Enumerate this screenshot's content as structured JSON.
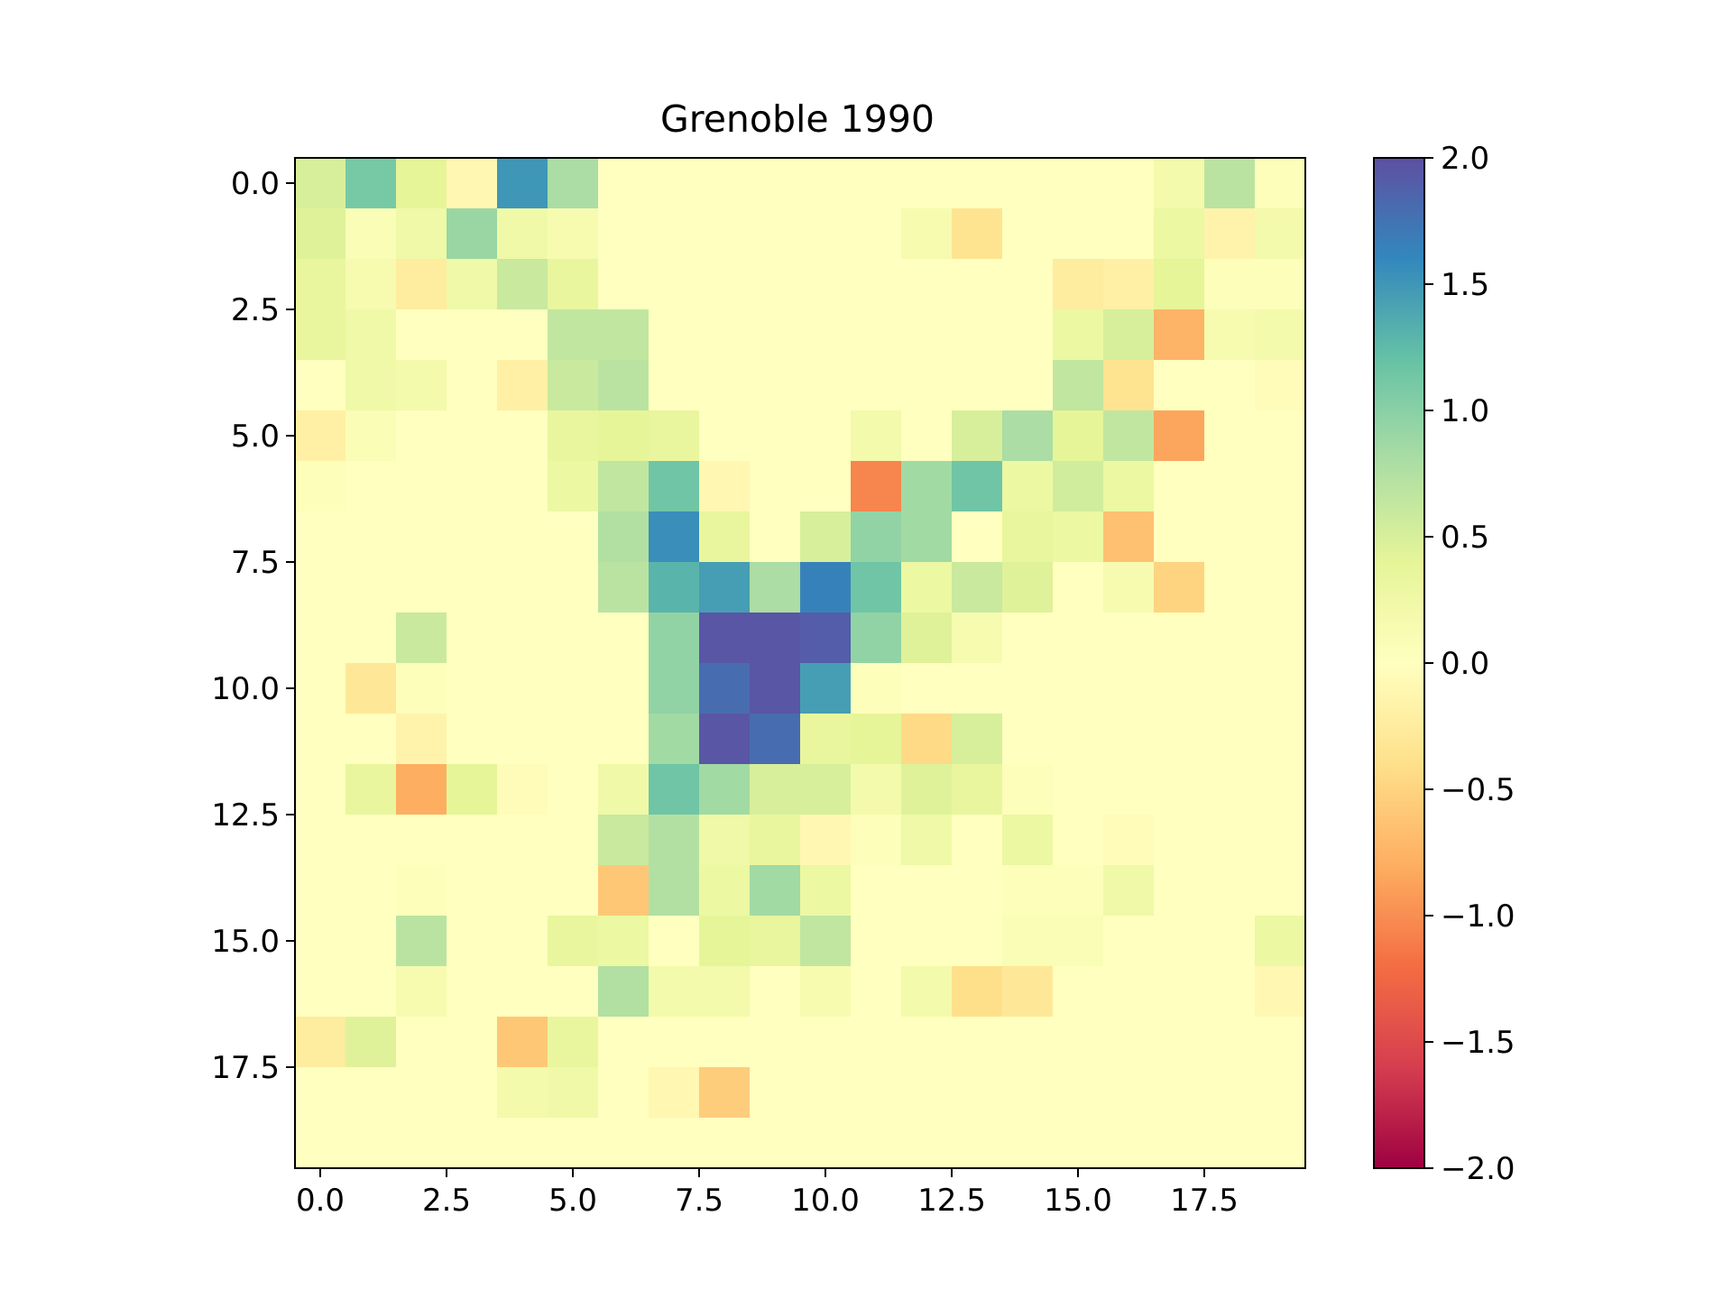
{
  "chart_data": {
    "type": "heatmap",
    "title": "Grenoble 1990",
    "xlabel": "",
    "ylabel": "",
    "colormap": "Spectral",
    "vmin": -2.0,
    "vmax": 2.0,
    "xlim": [
      -0.5,
      19.5
    ],
    "ylim": [
      19.5,
      -0.5
    ],
    "x_ticks": [
      "0.0",
      "2.5",
      "5.0",
      "7.5",
      "10.0",
      "12.5",
      "15.0",
      "17.5"
    ],
    "y_ticks": [
      "0.0",
      "2.5",
      "5.0",
      "7.5",
      "10.0",
      "12.5",
      "15.0",
      "17.5"
    ],
    "colorbar_ticks": [
      "−2.0",
      "−1.5",
      "−1.0",
      "−0.5",
      "0.0",
      "0.5",
      "1.0",
      "1.5",
      "2.0"
    ],
    "grid": false,
    "values": [
      [
        0.5,
        1.1,
        0.4,
        -0.1,
        1.5,
        0.8,
        0,
        0,
        0,
        0,
        0,
        0,
        0,
        0,
        0,
        0,
        0,
        0.2,
        0.7,
        0.05
      ],
      [
        0.45,
        0.1,
        0.25,
        0.9,
        0.25,
        0.15,
        0,
        0,
        0,
        0,
        0,
        0,
        0.15,
        -0.35,
        0,
        0,
        0,
        0.3,
        -0.15,
        0.2
      ],
      [
        0.35,
        0.15,
        -0.25,
        0.25,
        0.6,
        0.35,
        0,
        0,
        0,
        0,
        0,
        0,
        0,
        0,
        0,
        -0.25,
        -0.2,
        0.4,
        0.05,
        0.05
      ],
      [
        0.35,
        0.25,
        0,
        0,
        0,
        0.65,
        0.65,
        0,
        0,
        0,
        0,
        0,
        0,
        0,
        0,
        0.3,
        0.5,
        -0.75,
        0.15,
        0.2
      ],
      [
        0,
        0.25,
        0.2,
        0,
        -0.2,
        0.6,
        0.7,
        0,
        0,
        0,
        0,
        0,
        0,
        0,
        0,
        0.65,
        -0.35,
        0,
        0,
        -0.05
      ],
      [
        -0.2,
        0.1,
        0,
        0,
        0,
        0.35,
        0.4,
        0.35,
        0,
        0,
        0,
        0.2,
        0,
        0.5,
        0.8,
        0.4,
        0.65,
        -0.85,
        0,
        0
      ],
      [
        0.05,
        0,
        0,
        0,
        0,
        0.3,
        0.65,
        1.15,
        -0.1,
        0,
        0,
        -1.05,
        0.85,
        1.15,
        0.3,
        0.55,
        0.3,
        0,
        0,
        0
      ],
      [
        0,
        0,
        0,
        0,
        0,
        0,
        0.75,
        1.55,
        0.35,
        0,
        0.5,
        0.95,
        0.85,
        0,
        0.35,
        0.3,
        -0.65,
        0,
        0,
        0
      ],
      [
        0,
        0,
        0,
        0,
        0,
        0,
        0.7,
        1.3,
        1.45,
        0.8,
        1.65,
        1.15,
        0.3,
        0.6,
        0.45,
        0,
        0.15,
        -0.5,
        0,
        0
      ],
      [
        0,
        0,
        0.6,
        0,
        0,
        0,
        0,
        0.95,
        1.95,
        1.95,
        1.9,
        0.95,
        0.45,
        0.15,
        0,
        0,
        0,
        0,
        0,
        0
      ],
      [
        0,
        -0.3,
        0.05,
        0,
        0,
        0,
        0,
        0.95,
        1.8,
        1.95,
        1.45,
        0.05,
        0,
        0,
        0,
        0,
        0,
        0,
        0,
        0
      ],
      [
        0,
        0,
        -0.15,
        0,
        0,
        0,
        0,
        0.85,
        1.95,
        1.8,
        0.35,
        0.4,
        -0.45,
        0.5,
        0,
        0,
        0,
        0,
        0,
        0
      ],
      [
        0,
        0.35,
        -0.8,
        0.4,
        -0.05,
        0,
        0.25,
        1.15,
        0.85,
        0.5,
        0.5,
        0.2,
        0.45,
        0.35,
        0.05,
        0,
        0,
        0,
        0,
        0
      ],
      [
        0,
        0,
        0,
        0,
        0,
        0,
        0.6,
        0.75,
        0.25,
        0.35,
        -0.1,
        0.05,
        0.25,
        0,
        0.3,
        0,
        -0.05,
        0,
        0,
        0
      ],
      [
        0,
        0,
        0.05,
        0,
        0,
        0,
        -0.6,
        0.75,
        0.3,
        0.85,
        0.3,
        0,
        0,
        0,
        0.05,
        0.05,
        0.25,
        0,
        0,
        0
      ],
      [
        0,
        0,
        0.7,
        0,
        0,
        0.35,
        0.3,
        0,
        0.4,
        0.35,
        0.65,
        0,
        0,
        0,
        0.1,
        0.1,
        0,
        0,
        0,
        0.3
      ],
      [
        0,
        0,
        0.15,
        0,
        0,
        0,
        0.75,
        0.2,
        0.2,
        0,
        0.15,
        0,
        0.2,
        -0.4,
        -0.3,
        0,
        0,
        0,
        0,
        -0.1
      ],
      [
        -0.25,
        0.45,
        0,
        0,
        -0.6,
        0.35,
        0,
        0,
        0,
        0,
        0,
        0,
        0,
        0,
        0,
        0,
        0,
        0,
        0,
        0
      ],
      [
        0,
        0,
        0,
        0,
        0.2,
        0.25,
        0,
        -0.1,
        -0.55,
        0,
        0,
        0,
        0,
        0,
        0,
        0,
        0,
        0,
        0,
        0
      ],
      [
        0,
        0,
        0,
        0,
        0,
        0,
        0,
        0,
        0,
        0,
        0,
        0,
        0,
        0,
        0,
        0,
        0,
        0,
        0,
        0
      ]
    ]
  }
}
